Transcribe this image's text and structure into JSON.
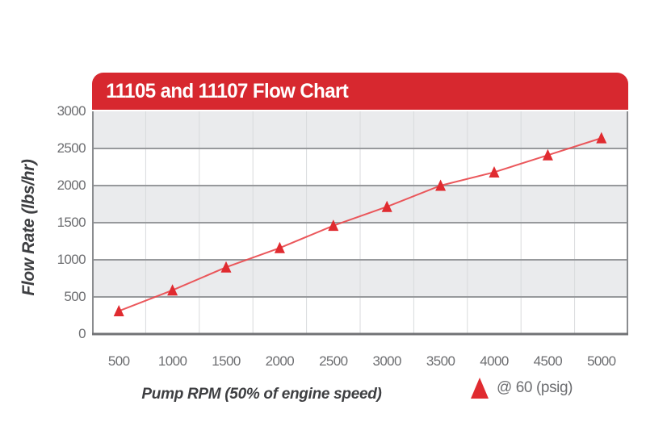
{
  "header": {
    "title": "11105 and 11107 Flow Chart"
  },
  "chart_data": {
    "type": "line",
    "title": "11105 and 11107 Flow Chart",
    "xlabel": "Pump RPM (50% of engine speed)",
    "ylabel": "Flow Rate (lbs/hr)",
    "x": [
      500,
      1000,
      1500,
      2000,
      2500,
      3000,
      3500,
      4000,
      4500,
      5000
    ],
    "series": [
      {
        "name": "@ 60 (psig)",
        "marker": "triangle",
        "values": [
          310,
          590,
          900,
          1160,
          1460,
          1715,
          2000,
          2180,
          2410,
          2640
        ]
      }
    ],
    "ylim": [
      0,
      3000
    ],
    "yticks": [
      3000,
      2500,
      2000,
      1500,
      1000,
      500,
      0
    ],
    "xticks": [
      "500",
      "1000",
      "1500",
      "2000",
      "2500",
      "3000",
      "3500",
      "4000",
      "4500",
      "5000"
    ],
    "grid": "horizontal bands with faint vertical column separators",
    "legend": {
      "label": "@ 60 (psig)",
      "position": "bottom-right"
    }
  },
  "colors": {
    "banner_red": "#d7282f",
    "marker_red": "#e02b30",
    "line_red": "#e9494d",
    "band_gray": "#eaebed",
    "band_white": "#ffffff",
    "hgrid": "#97999c",
    "vgrid": "#d8dadc",
    "border": "#8a8c8f",
    "axis_bottom": "#717275",
    "tick_text": "#6d6e71",
    "title_text": "#3e3f42"
  }
}
